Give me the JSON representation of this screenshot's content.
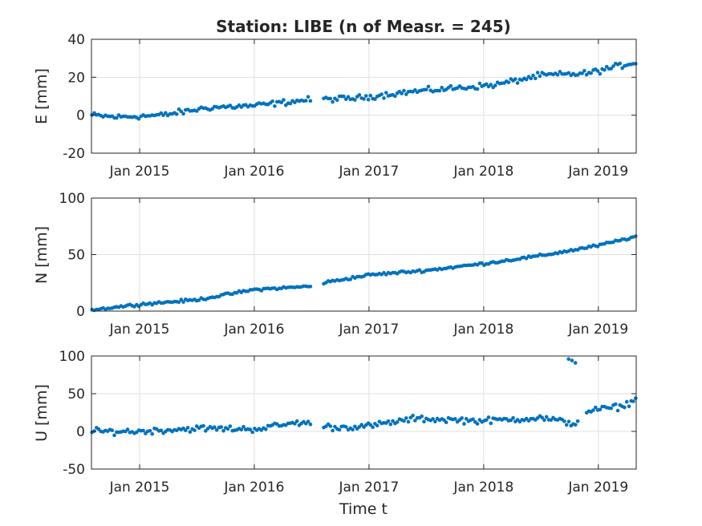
{
  "chart_data": {
    "type": "scatter",
    "title": "Station: LIBE (n of Measr. = 245)",
    "marker_color": "#0072bd",
    "grid": true,
    "x_ticks": [
      "Jan 2015",
      "Jan 2016",
      "Jan 2017",
      "Jan 2018",
      "Jan 2019"
    ],
    "x_range_years": [
      2014.58,
      2019.33
    ],
    "xlabel": "Time t",
    "panels": [
      {
        "ylabel": "E [mm]",
        "ylim": [
          -20,
          40
        ],
        "yticks": [
          "-20",
          "0",
          "20",
          "40"
        ],
        "yvalues": [
          -20,
          0,
          20,
          40
        ],
        "trend": [
          [
            2014.58,
            0
          ],
          [
            2014.8,
            -1
          ],
          [
            2015.2,
            0
          ],
          [
            2015.6,
            4
          ],
          [
            2016.0,
            5
          ],
          [
            2016.45,
            8
          ],
          [
            2016.9,
            9
          ],
          [
            2017.3,
            12
          ],
          [
            2017.7,
            14
          ],
          [
            2018.1,
            16
          ],
          [
            2018.5,
            21
          ],
          [
            2018.9,
            22
          ],
          [
            2019.33,
            28
          ]
        ],
        "noise": 1.3,
        "gaps": [
          [
            2016.5,
            2016.6
          ]
        ],
        "outliers": []
      },
      {
        "ylabel": "N [mm]",
        "ylim": [
          0,
          100
        ],
        "yticks": [
          "0",
          "50",
          "100"
        ],
        "yvalues": [
          0,
          50,
          100
        ],
        "trend": [
          [
            2014.58,
            1
          ],
          [
            2015.0,
            6
          ],
          [
            2015.5,
            10
          ],
          [
            2016.0,
            19
          ],
          [
            2016.5,
            22
          ],
          [
            2016.6,
            25
          ],
          [
            2017.0,
            32
          ],
          [
            2017.5,
            36
          ],
          [
            2018.0,
            42
          ],
          [
            2018.5,
            49
          ],
          [
            2019.0,
            58
          ],
          [
            2019.33,
            66
          ]
        ],
        "noise": 1.0,
        "gaps": [
          [
            2016.5,
            2016.6
          ]
        ],
        "outliers": []
      },
      {
        "ylabel": "U [mm]",
        "ylim": [
          -50,
          100
        ],
        "yticks": [
          "-50",
          "0",
          "50",
          "100"
        ],
        "yvalues": [
          -50,
          0,
          50,
          100
        ],
        "trend": [
          [
            2014.58,
            0
          ],
          [
            2015.0,
            0
          ],
          [
            2015.5,
            4
          ],
          [
            2016.0,
            3
          ],
          [
            2016.4,
            12
          ],
          [
            2016.7,
            5
          ],
          [
            2017.0,
            7
          ],
          [
            2017.4,
            17
          ],
          [
            2018.0,
            14
          ],
          [
            2018.5,
            18
          ],
          [
            2018.8,
            10
          ],
          [
            2018.9,
            27
          ],
          [
            2019.2,
            33
          ],
          [
            2019.33,
            42
          ]
        ],
        "noise": 3.5,
        "gaps": [
          [
            2016.5,
            2016.6
          ],
          [
            2018.82,
            2018.88
          ]
        ],
        "outliers": [
          [
            2018.74,
            96
          ],
          [
            2018.77,
            94
          ],
          [
            2018.8,
            91
          ]
        ]
      }
    ]
  }
}
